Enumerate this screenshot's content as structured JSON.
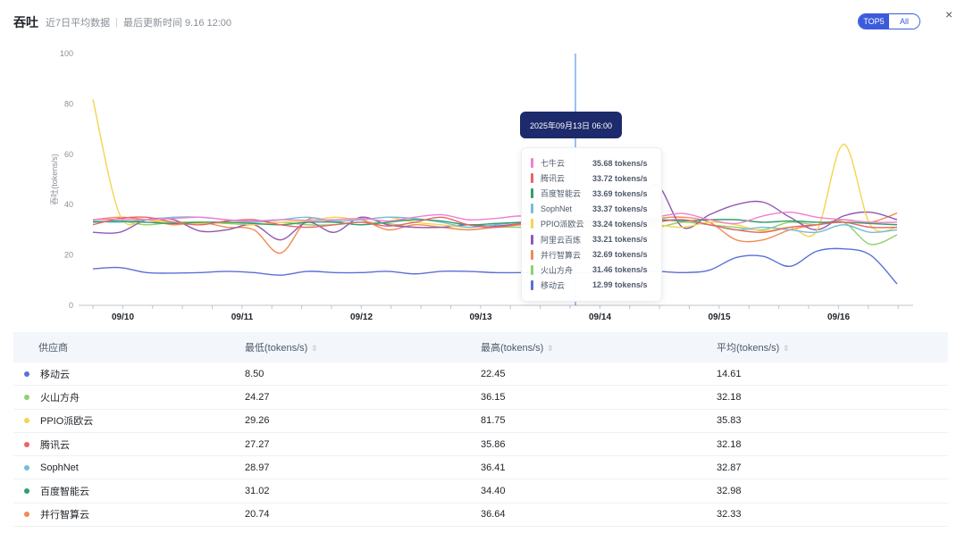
{
  "header": {
    "title": "吞吐",
    "subtitle": "近7日平均数据",
    "separator": "|",
    "updated": "最后更新时间 9.16 12:00"
  },
  "toggle": {
    "options": [
      "TOP5",
      "All"
    ],
    "active": "All"
  },
  "close_label": "×",
  "tooltip": {
    "title": "2025年09月13日 06:00",
    "rows": [
      {
        "name": "七牛云",
        "value": "35.68 tokens/s",
        "color": "#f07fd0"
      },
      {
        "name": "腾讯云",
        "value": "33.72 tokens/s",
        "color": "#e8636a"
      },
      {
        "name": "百度智能云",
        "value": "33.69 tokens/s",
        "color": "#2f9e6d"
      },
      {
        "name": "SophNet",
        "value": "33.37 tokens/s",
        "color": "#73bfd8"
      },
      {
        "name": "PPIO派欧云",
        "value": "33.24 tokens/s",
        "color": "#f6d44c"
      },
      {
        "name": "阿里云百炼",
        "value": "33.21 tokens/s",
        "color": "#9158b3"
      },
      {
        "name": "并行智算云",
        "value": "32.69 tokens/s",
        "color": "#f28a55"
      },
      {
        "name": "火山方舟",
        "value": "31.46 tokens/s",
        "color": "#8fd16c"
      },
      {
        "name": "移动云",
        "value": "12.99 tokens/s",
        "color": "#5b6fd6"
      }
    ]
  },
  "chart_data": {
    "type": "line",
    "ylabel": "吞吐(tokens/s)",
    "ylim": [
      0,
      100
    ],
    "yticks": [
      0,
      20,
      40,
      60,
      80,
      100
    ],
    "xticklabels": [
      "09/10",
      "09/11",
      "09/12",
      "09/13",
      "09/14",
      "09/15",
      "09/16"
    ],
    "x_start": "09/09 18:00",
    "x_end": "09/16 12:00",
    "cursor_x": "2025年09月13日 06:00",
    "series": [
      {
        "name": "七牛云",
        "color": "#f07fd0",
        "points": [
          [
            0,
            34
          ],
          [
            0.5,
            34.2
          ],
          [
            1,
            34
          ],
          [
            1.5,
            34.5
          ],
          [
            2,
            35
          ],
          [
            2.5,
            34
          ],
          [
            3,
            33.5
          ],
          [
            3.5,
            34
          ],
          [
            4,
            33.8
          ],
          [
            4.5,
            34
          ],
          [
            5,
            34.5
          ],
          [
            5.5,
            33.5
          ],
          [
            6,
            35
          ],
          [
            6.5,
            36
          ],
          [
            7,
            34
          ],
          [
            7.5,
            34.5
          ],
          [
            8,
            35.5
          ],
          [
            8.5,
            34
          ],
          [
            9,
            35.68
          ],
          [
            9.5,
            34
          ],
          [
            10,
            33.5
          ],
          [
            10.5,
            35
          ],
          [
            11,
            36.5
          ],
          [
            11.5,
            34
          ],
          [
            12,
            32.5
          ],
          [
            12.5,
            35.5
          ],
          [
            13,
            37
          ],
          [
            13.5,
            35
          ],
          [
            14,
            34
          ],
          [
            14.5,
            33
          ],
          [
            15,
            33
          ]
        ]
      },
      {
        "name": "腾讯云",
        "color": "#e8636a",
        "points": [
          [
            0,
            32
          ],
          [
            0.5,
            34.5
          ],
          [
            1,
            35
          ],
          [
            1.5,
            33
          ],
          [
            2,
            32
          ],
          [
            2.5,
            33.5
          ],
          [
            3,
            34
          ],
          [
            3.5,
            32
          ],
          [
            4,
            31
          ],
          [
            4.5,
            32
          ],
          [
            5,
            33
          ],
          [
            5.5,
            31.5
          ],
          [
            6,
            33
          ],
          [
            6.5,
            35
          ],
          [
            7,
            32
          ],
          [
            7.5,
            31
          ],
          [
            8,
            32.5
          ],
          [
            8.5,
            33.5
          ],
          [
            9,
            33.72
          ],
          [
            9.5,
            32
          ],
          [
            10,
            31
          ],
          [
            10.5,
            33
          ],
          [
            11,
            34
          ],
          [
            11.5,
            32
          ],
          [
            12,
            30
          ],
          [
            12.5,
            29
          ],
          [
            13,
            31
          ],
          [
            13.5,
            32
          ],
          [
            14,
            33
          ],
          [
            14.5,
            31
          ],
          [
            15,
            31
          ]
        ]
      },
      {
        "name": "百度智能云",
        "color": "#2f9e6d",
        "points": [
          [
            0,
            33
          ],
          [
            0.5,
            33.5
          ],
          [
            1,
            33
          ],
          [
            1.5,
            32.5
          ],
          [
            2,
            33
          ],
          [
            2.5,
            33
          ],
          [
            3,
            32.5
          ],
          [
            3.5,
            32
          ],
          [
            4,
            33
          ],
          [
            4.5,
            33
          ],
          [
            5,
            32
          ],
          [
            5.5,
            33
          ],
          [
            6,
            34
          ],
          [
            6.5,
            33.5
          ],
          [
            7,
            32
          ],
          [
            7.5,
            32.5
          ],
          [
            8,
            33
          ],
          [
            8.5,
            33.5
          ],
          [
            9,
            33.69
          ],
          [
            9.5,
            33
          ],
          [
            10,
            33
          ],
          [
            10.5,
            34
          ],
          [
            11,
            33.5
          ],
          [
            11.5,
            34
          ],
          [
            12,
            34
          ],
          [
            12.5,
            33
          ],
          [
            13,
            33.5
          ],
          [
            13.5,
            33
          ],
          [
            14,
            33
          ],
          [
            14.5,
            32.5
          ],
          [
            15,
            32
          ]
        ]
      },
      {
        "name": "SophNet",
        "color": "#73bfd8",
        "points": [
          [
            0,
            33.5
          ],
          [
            0.5,
            33
          ],
          [
            1,
            34
          ],
          [
            1.5,
            35
          ],
          [
            2,
            35
          ],
          [
            2.5,
            34
          ],
          [
            3,
            33
          ],
          [
            3.5,
            34
          ],
          [
            4,
            35
          ],
          [
            4.5,
            33.5
          ],
          [
            5,
            34
          ],
          [
            5.5,
            35
          ],
          [
            6,
            34.5
          ],
          [
            6.5,
            33
          ],
          [
            7,
            31
          ],
          [
            7.5,
            32
          ],
          [
            8,
            33
          ],
          [
            8.5,
            33
          ],
          [
            9,
            33.37
          ],
          [
            9.5,
            33
          ],
          [
            10,
            32
          ],
          [
            10.5,
            33.5
          ],
          [
            11,
            34
          ],
          [
            11.5,
            32
          ],
          [
            12,
            30
          ],
          [
            12.5,
            31
          ],
          [
            13,
            30
          ],
          [
            13.5,
            29
          ],
          [
            14,
            32
          ],
          [
            14.5,
            29
          ],
          [
            15,
            30
          ]
        ]
      },
      {
        "name": "PPIO派欧云",
        "color": "#f6d44c",
        "points": [
          [
            0,
            81.75
          ],
          [
            0.5,
            36
          ],
          [
            1,
            34
          ],
          [
            1.5,
            33
          ],
          [
            2,
            32.5
          ],
          [
            2.5,
            33
          ],
          [
            3,
            32
          ],
          [
            3.5,
            33
          ],
          [
            4,
            33.5
          ],
          [
            4.5,
            35
          ],
          [
            5,
            34
          ],
          [
            5.5,
            35
          ],
          [
            6,
            33
          ],
          [
            6.5,
            32
          ],
          [
            7,
            31
          ],
          [
            7.5,
            32
          ],
          [
            8,
            33
          ],
          [
            8.5,
            32
          ],
          [
            9,
            33.24
          ],
          [
            9.5,
            33
          ],
          [
            10,
            32
          ],
          [
            10.5,
            32
          ],
          [
            11,
            31
          ],
          [
            11.5,
            33
          ],
          [
            12,
            32
          ],
          [
            12.5,
            29.5
          ],
          [
            13,
            31
          ],
          [
            13.5,
            29.5
          ],
          [
            14,
            64
          ],
          [
            14.5,
            32
          ],
          [
            15,
            31
          ]
        ]
      },
      {
        "name": "阿里云百炼",
        "color": "#9158b3",
        "points": [
          [
            0,
            29
          ],
          [
            0.5,
            29
          ],
          [
            1,
            34
          ],
          [
            1.5,
            34
          ],
          [
            2,
            29.5
          ],
          [
            2.5,
            30
          ],
          [
            3,
            32
          ],
          [
            3.5,
            26
          ],
          [
            4,
            33
          ],
          [
            4.5,
            29
          ],
          [
            5,
            35
          ],
          [
            5.5,
            32
          ],
          [
            6,
            31
          ],
          [
            6.5,
            31
          ],
          [
            7,
            32
          ],
          [
            7.5,
            31.5
          ],
          [
            8,
            32.5
          ],
          [
            8.5,
            33
          ],
          [
            9,
            33.21
          ],
          [
            9.5,
            34
          ],
          [
            10,
            35
          ],
          [
            10.5,
            48
          ],
          [
            11,
            31
          ],
          [
            11.5,
            36
          ],
          [
            12,
            40
          ],
          [
            12.5,
            41
          ],
          [
            13,
            35
          ],
          [
            13.5,
            30
          ],
          [
            14,
            35.5
          ],
          [
            14.5,
            37
          ],
          [
            15,
            34
          ]
        ]
      },
      {
        "name": "并行智算云",
        "color": "#f28a55",
        "points": [
          [
            0,
            34
          ],
          [
            0.5,
            35
          ],
          [
            1,
            34
          ],
          [
            1.5,
            32
          ],
          [
            2,
            33
          ],
          [
            2.5,
            31
          ],
          [
            3,
            30
          ],
          [
            3.5,
            20.74
          ],
          [
            4,
            34
          ],
          [
            4.5,
            33
          ],
          [
            5,
            34
          ],
          [
            5.5,
            30
          ],
          [
            6,
            32
          ],
          [
            6.5,
            31
          ],
          [
            7,
            30
          ],
          [
            7.5,
            31
          ],
          [
            8,
            32
          ],
          [
            8.5,
            32.5
          ],
          [
            9,
            32.69
          ],
          [
            9.5,
            30
          ],
          [
            10,
            28
          ],
          [
            10.5,
            34
          ],
          [
            11,
            35
          ],
          [
            11.5,
            33
          ],
          [
            12,
            26
          ],
          [
            12.5,
            26
          ],
          [
            13,
            30
          ],
          [
            13.5,
            32
          ],
          [
            14,
            34
          ],
          [
            14.5,
            33
          ],
          [
            15,
            36.64
          ]
        ]
      },
      {
        "name": "火山方舟",
        "color": "#8fd16c",
        "points": [
          [
            0,
            33
          ],
          [
            0.5,
            33.5
          ],
          [
            1,
            32
          ],
          [
            1.5,
            33
          ],
          [
            2,
            33
          ],
          [
            2.5,
            32.5
          ],
          [
            3,
            32
          ],
          [
            3.5,
            33
          ],
          [
            4,
            32
          ],
          [
            4.5,
            32
          ],
          [
            5,
            33
          ],
          [
            5.5,
            32.5
          ],
          [
            6,
            31
          ],
          [
            6.5,
            31
          ],
          [
            7,
            30
          ],
          [
            7.5,
            31
          ],
          [
            8,
            31
          ],
          [
            8.5,
            31
          ],
          [
            9,
            31.46
          ],
          [
            9.5,
            32
          ],
          [
            10,
            32
          ],
          [
            10.5,
            31
          ],
          [
            11,
            33
          ],
          [
            11.5,
            32
          ],
          [
            12,
            31
          ],
          [
            12.5,
            30
          ],
          [
            13,
            33
          ],
          [
            13.5,
            32
          ],
          [
            14,
            33
          ],
          [
            14.5,
            24.27
          ],
          [
            15,
            28
          ]
        ]
      },
      {
        "name": "移动云",
        "color": "#5b6fd6",
        "points": [
          [
            0,
            14.5
          ],
          [
            0.5,
            15
          ],
          [
            1,
            13
          ],
          [
            1.5,
            12.8
          ],
          [
            2,
            13
          ],
          [
            2.5,
            13.5
          ],
          [
            3,
            13
          ],
          [
            3.5,
            12
          ],
          [
            4,
            13.5
          ],
          [
            4.5,
            13
          ],
          [
            5,
            13
          ],
          [
            5.5,
            13.5
          ],
          [
            6,
            12.5
          ],
          [
            6.5,
            13.5
          ],
          [
            7,
            13.5
          ],
          [
            7.5,
            13
          ],
          [
            8,
            13
          ],
          [
            8.5,
            13
          ],
          [
            9,
            12.99
          ],
          [
            9.5,
            13
          ],
          [
            10,
            13
          ],
          [
            10.5,
            13.5
          ],
          [
            11,
            13
          ],
          [
            11.5,
            14
          ],
          [
            12,
            19
          ],
          [
            12.5,
            19.5
          ],
          [
            13,
            15.5
          ],
          [
            13.5,
            21.5
          ],
          [
            14,
            22.45
          ],
          [
            14.5,
            20
          ],
          [
            15,
            8.5
          ]
        ]
      }
    ]
  },
  "table": {
    "headers": [
      "供应商",
      "最低(tokens/s)",
      "最高(tokens/s)",
      "平均(tokens/s)"
    ],
    "sort_icon": "⇳",
    "rows": [
      {
        "name": "移动云",
        "min": "8.50",
        "max": "22.45",
        "avg": "14.61",
        "color": "#5b6fd6"
      },
      {
        "name": "火山方舟",
        "min": "24.27",
        "max": "36.15",
        "avg": "32.18",
        "color": "#8fd16c"
      },
      {
        "name": "PPIO派欧云",
        "min": "29.26",
        "max": "81.75",
        "avg": "35.83",
        "color": "#f6d44c"
      },
      {
        "name": "腾讯云",
        "min": "27.27",
        "max": "35.86",
        "avg": "32.18",
        "color": "#e8636a"
      },
      {
        "name": "SophNet",
        "min": "28.97",
        "max": "36.41",
        "avg": "32.87",
        "color": "#73bfd8"
      },
      {
        "name": "百度智能云",
        "min": "31.02",
        "max": "34.40",
        "avg": "32.98",
        "color": "#2f9e6d"
      },
      {
        "name": "并行智算云",
        "min": "20.74",
        "max": "36.64",
        "avg": "32.33",
        "color": "#f28a55"
      }
    ]
  }
}
